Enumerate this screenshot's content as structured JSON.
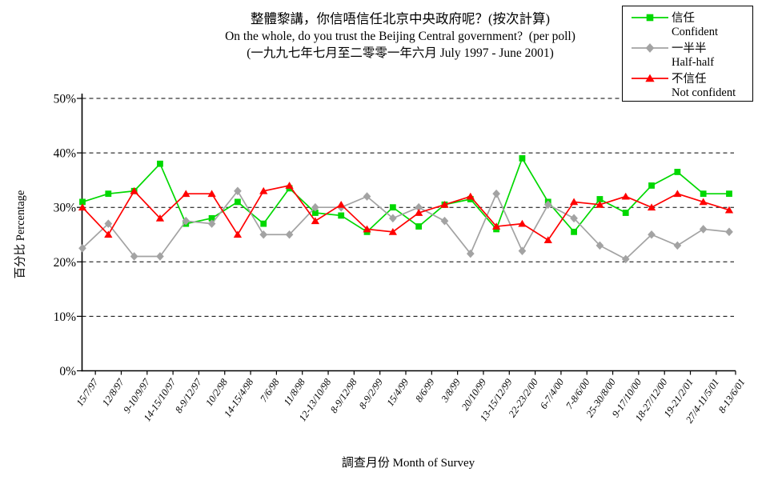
{
  "title": {
    "line1": "整體黎講，你信唔信任北京中央政府呢？(按次計算)",
    "line2": "On the whole, do you trust the Beijing Central government?  (per poll)",
    "line3": "(一九九七年七月至二零零一年六月 July 1997 -  June 2001)"
  },
  "chart_data": {
    "type": "line",
    "title": "整體黎講，你信唔信任北京中央政府呢？(按次計算)",
    "subtitle": "On the whole, do you trust the Beijing Central government?  (per poll)",
    "date_range": "(一九九七年七月至二零零一年六月 July 1997 - June 2001)",
    "xlabel": "調查月份 Month of Survey",
    "ylabel": "百分比 Percentage",
    "ylim": [
      0,
      50
    ],
    "yticks": [
      "0%",
      "10%",
      "20%",
      "30%",
      "40%",
      "50%"
    ],
    "grid": "horizontal-dashed",
    "legend_position": "top-right",
    "categories": [
      "15/7/97",
      "12/8/97",
      "9-10/9/97",
      "14-15/10/97",
      "8-9/12/97",
      "10/2/98",
      "14-15/4/98",
      "7/6/98",
      "11/8/98",
      "12-13/10/98",
      "8-9/12/98",
      "8-9/2/99",
      "15/4/99",
      "8/6/99",
      "3/8/99",
      "20/10/99",
      "13-15/12/99",
      "22-23/2/00",
      "6-7/4/00",
      "7-8/6/00",
      "25-30/8/00",
      "9-17/10/00",
      "18-27/12/00",
      "19-21/2/01",
      "27/4-11/5/01",
      "8-13/6/01"
    ],
    "series": [
      {
        "key": "confident",
        "name_zh": "信任",
        "name_en": "Confident",
        "color": "#00d800",
        "marker": "square",
        "values": [
          31,
          32.5,
          33,
          38,
          27,
          28,
          31,
          27,
          33.5,
          29,
          28.5,
          25.5,
          30,
          26.5,
          30.5,
          31.5,
          26,
          39,
          31,
          25.5,
          31.5,
          29,
          34,
          36.5,
          32.5,
          32.5
        ]
      },
      {
        "key": "half-half",
        "name_zh": "一半半",
        "name_en": "Half-half",
        "color": "#a3a3a3",
        "marker": "diamond",
        "values": [
          22.5,
          27,
          21,
          21,
          27.5,
          27,
          33,
          25,
          25,
          30,
          30,
          32,
          28,
          30,
          27.5,
          21.5,
          32.5,
          22,
          30.5,
          28,
          23,
          20.5,
          25,
          23,
          26,
          25.5
        ]
      },
      {
        "key": "not-confident",
        "name_zh": "不信任",
        "name_en": "Not confident",
        "color": "#ff0000",
        "marker": "triangle",
        "values": [
          30,
          25,
          33,
          28,
          32.5,
          32.5,
          25,
          33,
          34,
          27.5,
          30.5,
          26,
          25.5,
          29,
          30.5,
          32,
          26.5,
          27,
          24,
          31,
          30.5,
          32,
          30,
          32.5,
          31,
          29.5
        ]
      }
    ]
  }
}
